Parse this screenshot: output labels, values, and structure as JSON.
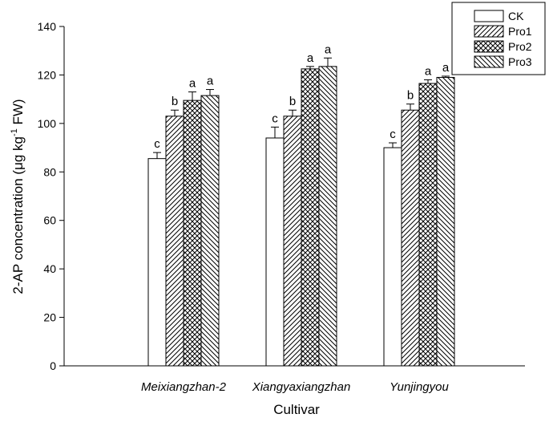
{
  "chart_data": {
    "type": "bar",
    "xlabel": "Cultivar",
    "ylabel": {
      "main": "2-AP concentration (μg kg",
      "superscript": "-1",
      "tail": " FW)"
    },
    "ylim": [
      0,
      140
    ],
    "yticks": [
      0,
      20,
      40,
      60,
      80,
      100,
      120,
      140
    ],
    "grid": false,
    "legend_position": "top-right",
    "categories": [
      "Meixiangzhan-2",
      "Xiangyaxiangzhan",
      "Yunjingyou"
    ],
    "series": [
      {
        "name": "CK",
        "pattern": "blank",
        "values": [
          85.5,
          94.0,
          90.0
        ],
        "errors": [
          2.5,
          4.5,
          2.0
        ],
        "labels": [
          "c",
          "c",
          "c"
        ]
      },
      {
        "name": "Pro1",
        "pattern": "diag-up",
        "values": [
          103.0,
          103.0,
          105.5
        ],
        "errors": [
          2.5,
          2.5,
          2.5
        ],
        "labels": [
          "b",
          "b",
          "b"
        ]
      },
      {
        "name": "Pro2",
        "pattern": "crosshatch",
        "values": [
          109.5,
          122.5,
          116.5
        ],
        "errors": [
          3.5,
          1.0,
          1.5
        ],
        "labels": [
          "a",
          "a",
          "a"
        ]
      },
      {
        "name": "Pro3",
        "pattern": "diag-down",
        "values": [
          111.5,
          123.5,
          119.0
        ],
        "errors": [
          2.5,
          3.5,
          0.5
        ],
        "labels": [
          "a",
          "a",
          "a"
        ]
      }
    ]
  }
}
